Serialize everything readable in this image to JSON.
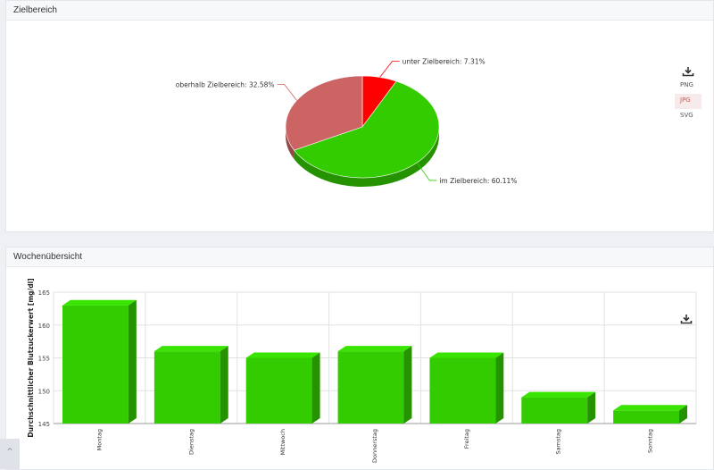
{
  "panels": {
    "zielbereich_title": "Zielbereich",
    "woche_title": "Wochenübersicht"
  },
  "export": {
    "download_icon": "download-icon",
    "options": [
      "PNG",
      "JPG",
      "SVG"
    ],
    "active": "JPG"
  },
  "chart_data": [
    {
      "type": "pie",
      "title": "",
      "slices": [
        {
          "label": "unter Zielbereich",
          "value": 7.31,
          "display": "unter Zielbereich: 7.31%",
          "color": "#ff0000"
        },
        {
          "label": "im Zielbereich",
          "value": 60.11,
          "display": "im Zielbereich: 60.11%",
          "color": "#33cc00"
        },
        {
          "label": "oberhalb Zielbereich",
          "value": 32.58,
          "display": "oberhalb Zielbereich: 32.58%",
          "color": "#cd6464"
        }
      ]
    },
    {
      "type": "bar",
      "title": "",
      "xlabel": "",
      "ylabel": "Durchschnittlicher Blutzuckerwert [mg/dl]",
      "categories": [
        "Montag",
        "Dienstag",
        "Mittwoch",
        "Donnerstag",
        "Freitag",
        "Samstag",
        "Sonntag"
      ],
      "values": [
        163,
        156,
        155,
        156,
        155,
        149,
        147
      ],
      "ylim": [
        145,
        165
      ],
      "yticks": [
        "145",
        "150",
        "155",
        "160",
        "165"
      ],
      "grid": true,
      "color": "#33cc00"
    }
  ]
}
